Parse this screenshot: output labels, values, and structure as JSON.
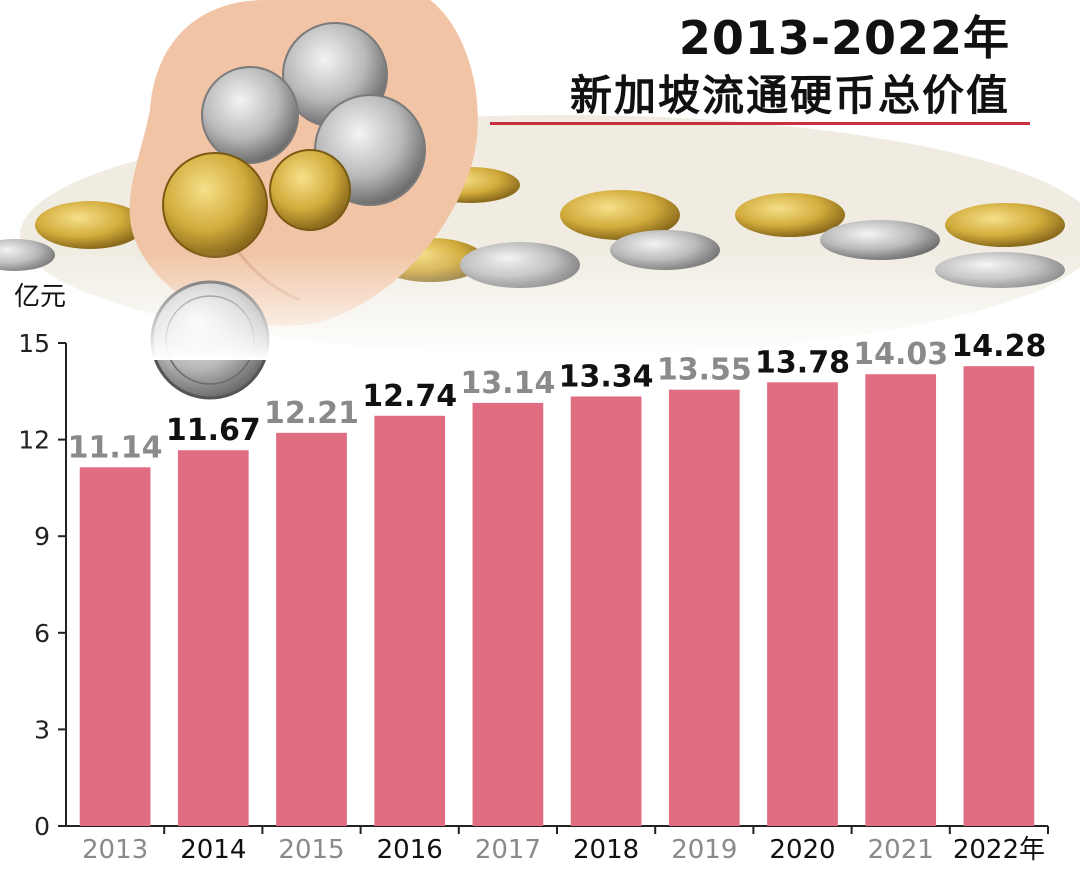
{
  "title_lines": [
    "2013-2022年",
    "新加坡流通硬币总价值"
  ],
  "colors": {
    "bar": "#e06d81",
    "value_dark": "#111111",
    "value_light": "#8a8a8a",
    "accent": "#c8303f"
  },
  "chart_data": {
    "type": "bar",
    "title": "2013-2022年 新加坡流通硬币总价值",
    "xlabel": "",
    "ylabel": "亿元",
    "ylim": [
      0,
      15
    ],
    "yticks": [
      0,
      3,
      6,
      9,
      12,
      15
    ],
    "grid": false,
    "categories": [
      "2013",
      "2014",
      "2015",
      "2016",
      "2017",
      "2018",
      "2019",
      "2020",
      "2021",
      "2022年"
    ],
    "values": [
      11.14,
      11.67,
      12.21,
      12.74,
      13.14,
      13.34,
      13.55,
      13.78,
      14.03,
      14.28
    ],
    "value_labels": [
      "11.14",
      "11.67",
      "12.21",
      "12.74",
      "13.14",
      "13.34",
      "13.55",
      "13.78",
      "14.03",
      "14.28"
    ]
  }
}
